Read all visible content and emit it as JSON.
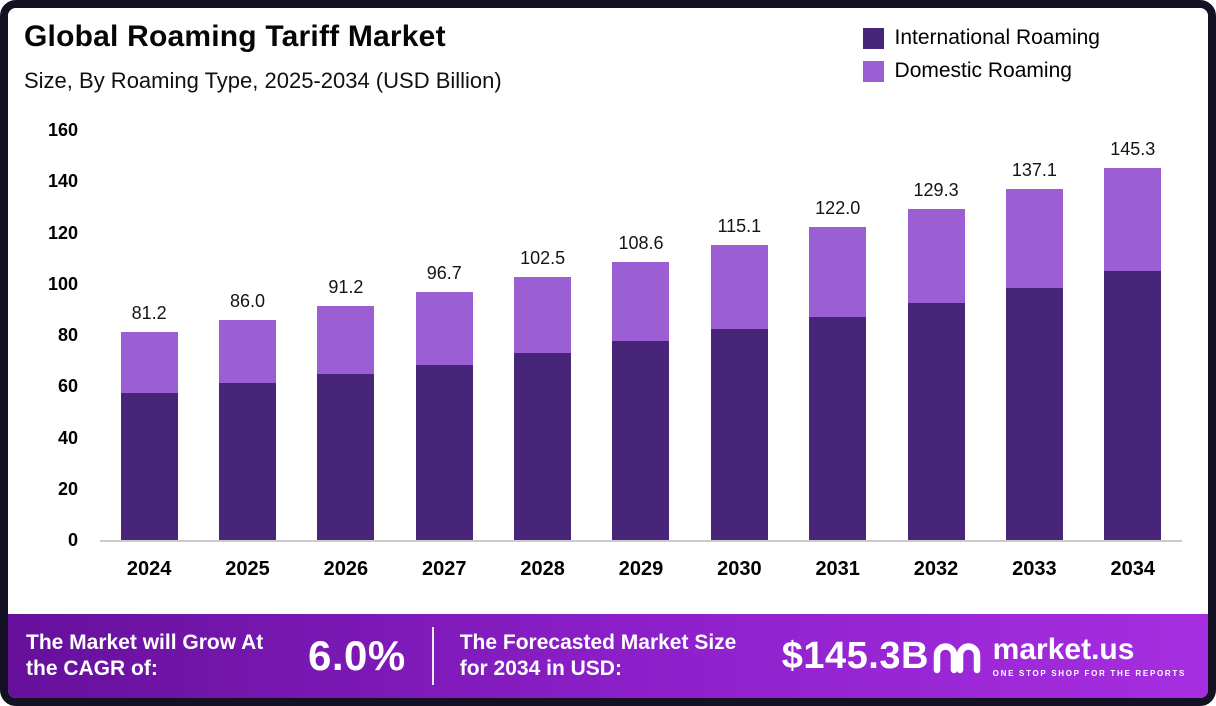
{
  "title": "Global Roaming Tariff Market",
  "subtitle": "Size, By Roaming Type, 2025-2034 (USD Billion)",
  "legend": [
    {
      "label": "International Roaming",
      "color": "#472579"
    },
    {
      "label": "Domestic Roaming",
      "color": "#9c5fd3"
    }
  ],
  "chart_data": {
    "type": "bar",
    "stacked": true,
    "title": "Global Roaming Tariff Market Size, By Roaming Type, 2025-2034 (USD Billion)",
    "categories": [
      "2024",
      "2025",
      "2026",
      "2027",
      "2028",
      "2029",
      "2030",
      "2031",
      "2032",
      "2033",
      "2034"
    ],
    "series": [
      {
        "name": "International Roaming",
        "color": "#472579",
        "values": [
          57.4,
          61.3,
          64.8,
          68.3,
          73.0,
          77.7,
          82.3,
          87.0,
          92.5,
          98.3,
          105.0
        ]
      },
      {
        "name": "Domestic Roaming",
        "color": "#9c5fd3",
        "values": [
          23.8,
          24.7,
          26.4,
          28.4,
          29.5,
          30.9,
          32.8,
          35.0,
          36.8,
          38.8,
          40.3
        ]
      }
    ],
    "totals": [
      81.2,
      86.0,
      91.2,
      96.7,
      102.5,
      108.6,
      115.1,
      122.0,
      129.3,
      137.1,
      145.3
    ],
    "xlabel": "",
    "ylabel": "",
    "ylim": [
      0,
      160
    ],
    "yticks": [
      0,
      20,
      40,
      60,
      80,
      100,
      120,
      140,
      160
    ],
    "grid": false,
    "legend_position": "top-right"
  },
  "banner": {
    "cagr_label": "The Market will Grow At the CAGR of:",
    "cagr_value": "6.0%",
    "forecast_label": "The Forecasted Market Size for 2034 in USD:",
    "forecast_value": "$145.3B",
    "brand": "market.us",
    "brand_tagline": "ONE STOP SHOP FOR THE REPORTS"
  },
  "colors": {
    "frame_border": "#141124",
    "banner_gradient_start": "#66109b",
    "banner_gradient_end": "#a62ee0"
  }
}
